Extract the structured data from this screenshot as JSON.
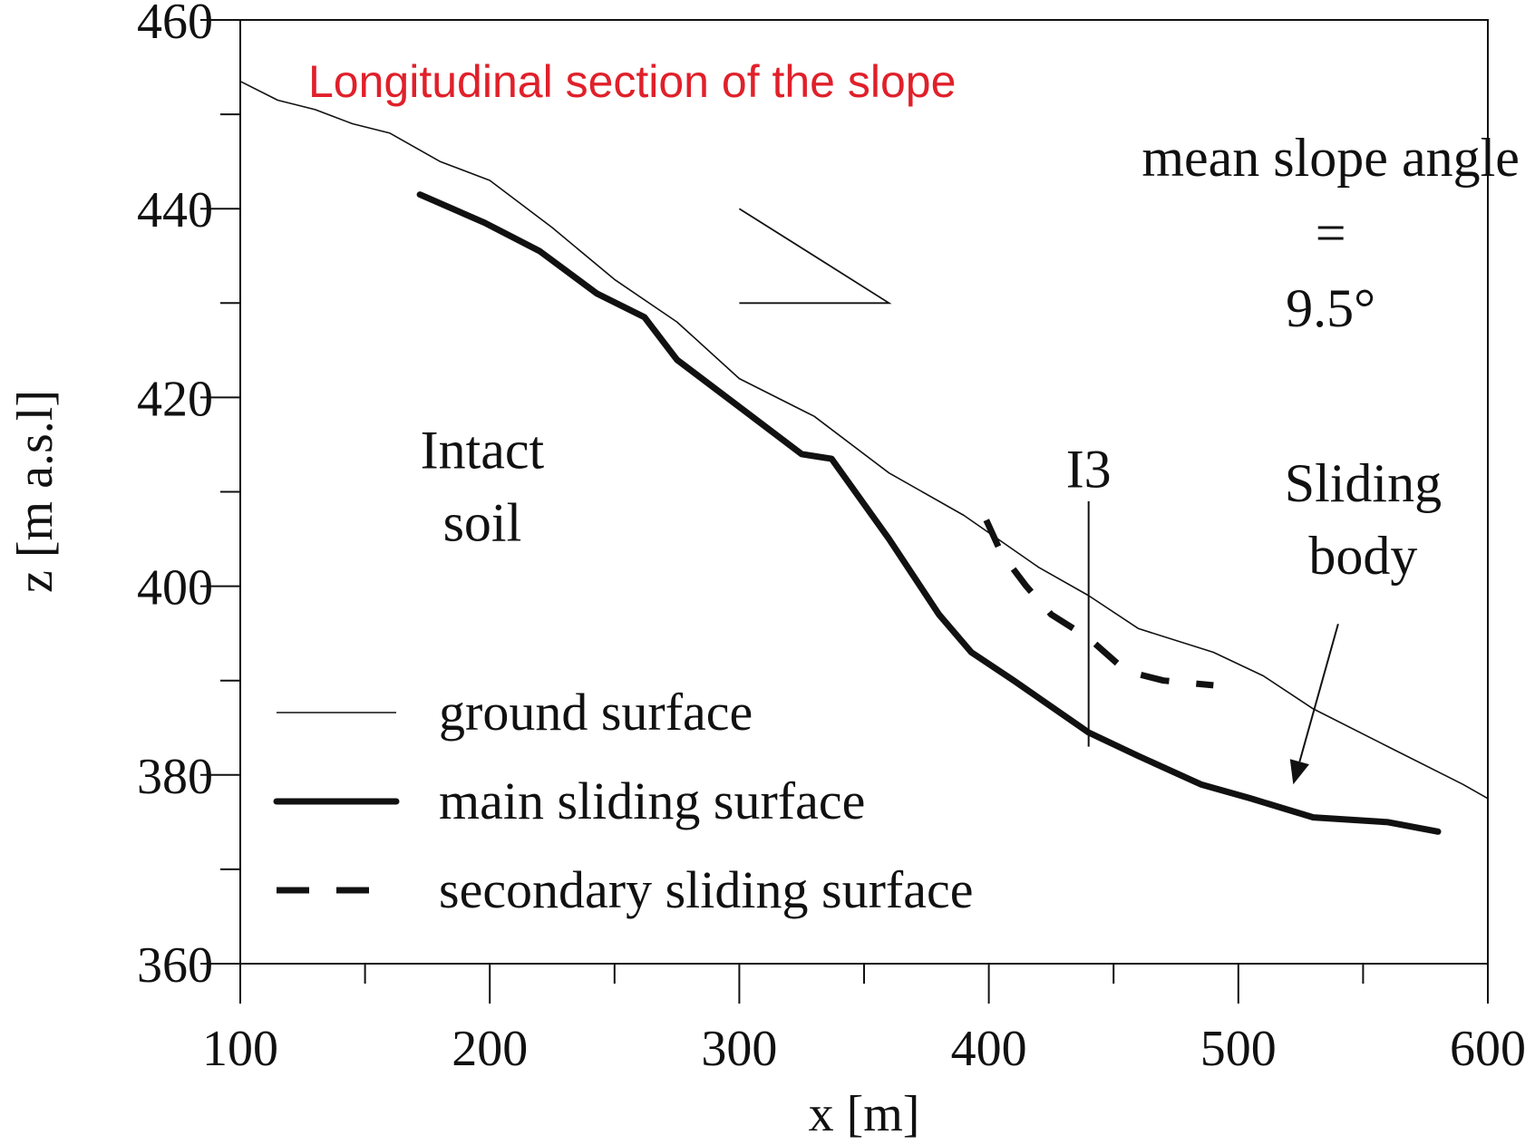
{
  "chart_data": {
    "type": "line",
    "title": "Longitudinal section of the slope",
    "xlabel": "x [m]",
    "ylabel": "z [m a.s.l]",
    "xlim": [
      100,
      600
    ],
    "ylim": [
      360,
      460
    ],
    "xticks": [
      100,
      200,
      300,
      400,
      500,
      600
    ],
    "yticks": [
      360,
      380,
      400,
      420,
      440,
      460
    ],
    "grid": false,
    "legend_position": "bottom-left",
    "title_color": "#e0202a",
    "series": [
      {
        "name": "ground surface",
        "style": "thin",
        "x": [
          100,
          115,
          130,
          145,
          160,
          180,
          200,
          225,
          250,
          275,
          300,
          330,
          360,
          390,
          420,
          440,
          460,
          490,
          510,
          530,
          560,
          590,
          600
        ],
        "y": [
          453.5,
          451.5,
          450.5,
          449,
          448,
          445,
          443,
          438,
          432.5,
          428,
          422,
          418,
          412,
          407.5,
          402,
          399,
          395.5,
          393,
          390.5,
          387,
          383,
          379,
          377.5
        ]
      },
      {
        "name": "main sliding surface",
        "style": "thick",
        "x": [
          172,
          198,
          220,
          243,
          262,
          275,
          300,
          325,
          337,
          360,
          380,
          393,
          410,
          440,
          460,
          485,
          505,
          530,
          560,
          580
        ],
        "y": [
          441.5,
          438.5,
          435.5,
          431,
          428.5,
          424,
          419,
          414,
          413.5,
          405,
          397,
          393,
          390,
          384.5,
          382,
          379,
          377.5,
          375.5,
          375,
          374
        ]
      },
      {
        "name": "secondary sliding surface",
        "style": "dashed",
        "x": [
          399,
          405,
          415,
          425,
          440,
          455,
          470,
          490
        ],
        "y": [
          407,
          403.5,
          400,
          397,
          394.5,
          391,
          390,
          389.5
        ]
      }
    ],
    "annotations": [
      {
        "id": "slope-angle-label",
        "lines": [
          "mean slope angle",
          "=",
          "9.5°"
        ],
        "x": 537,
        "y": 443.5
      },
      {
        "id": "intact-soil-label",
        "lines": [
          "Intact",
          "soil"
        ],
        "x": 197,
        "y": 412.5
      },
      {
        "id": "sliding-body-label",
        "lines": [
          "Sliding",
          "body"
        ],
        "x": 550,
        "y": 409
      },
      {
        "id": "i3-label",
        "lines": [
          "I3"
        ],
        "x": 440,
        "y": 410.5
      }
    ],
    "i3_marker": {
      "x": 440,
      "y_top": 409,
      "y_bottom": 383
    },
    "slope_triangle": {
      "x_start": 300,
      "x_end": 360,
      "y_top": 440,
      "y_bottom": 430
    },
    "arrow": {
      "from": [
        540,
        396
      ],
      "to": [
        522,
        379
      ]
    }
  }
}
